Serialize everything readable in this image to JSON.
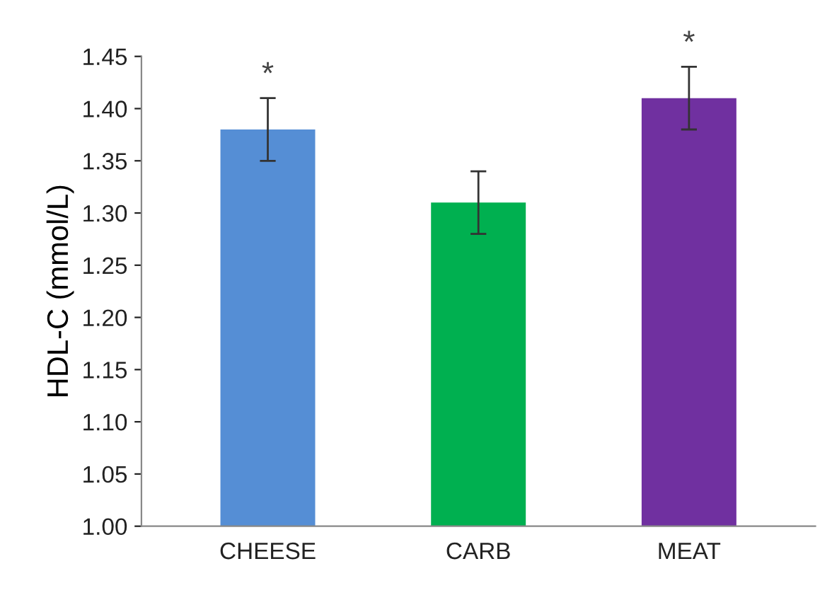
{
  "chart_data": {
    "type": "bar",
    "ylabel": "HDL-C (mmol/L)",
    "categories": [
      "CHEESE",
      "CARB",
      "MEAT"
    ],
    "values": [
      1.38,
      1.31,
      1.41
    ],
    "errors": [
      0.03,
      0.03,
      0.03
    ],
    "colors": [
      "#558ed5",
      "#00b050",
      "#7030a0"
    ],
    "ylim": [
      1.0,
      1.45
    ],
    "yticks": [
      {
        "value": 1.0,
        "label": "1.00"
      },
      {
        "value": 1.05,
        "label": "1.05"
      },
      {
        "value": 1.1,
        "label": "1.10"
      },
      {
        "value": 1.15,
        "label": "1.15"
      },
      {
        "value": 1.2,
        "label": "1.20"
      },
      {
        "value": 1.25,
        "label": "1.25"
      },
      {
        "value": 1.3,
        "label": "1.30"
      },
      {
        "value": 1.35,
        "label": "1.35"
      },
      {
        "value": 1.4,
        "label": "1.40"
      },
      {
        "value": 1.45,
        "label": "1.45"
      }
    ],
    "annotations": [
      {
        "text": "*",
        "x": "CHEESE",
        "y": 1.41
      },
      {
        "text": "*",
        "x": "MEAT",
        "y": 1.44
      }
    ],
    "grid": false,
    "legend": false
  }
}
